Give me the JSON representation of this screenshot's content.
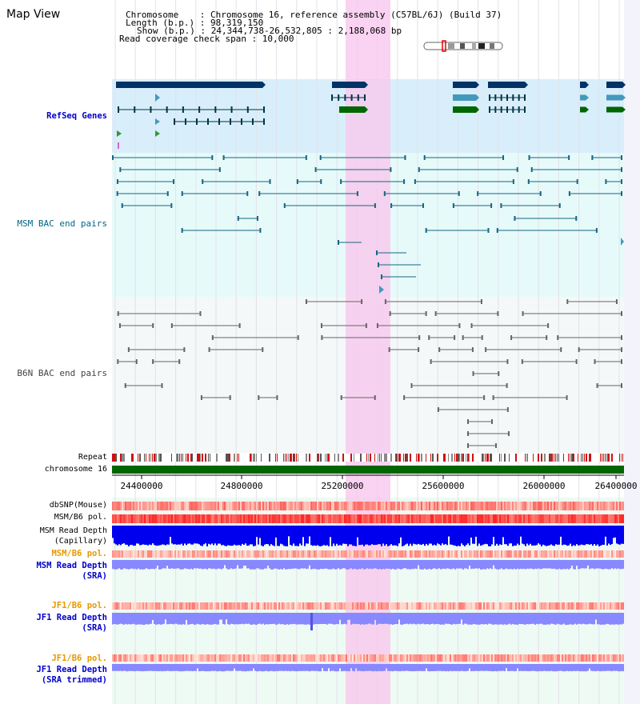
{
  "view_title": "Map View",
  "info": {
    "chromosome": "Chromosome    : Chromosome 16, reference assembly (C57BL/6J) (Build 37)",
    "length": "Length (b.p.) : 98,319,150",
    "show": "Show (b.p.) : 24,344,738-26,532,805 : 2,188,068 bp",
    "coverage": "Read coverage check span : 10,000"
  },
  "tracks": {
    "refseq": "RefSeq Genes",
    "msm_bac": "MSM BAC end pairs",
    "b6n_bac": "B6N BAC end pairs",
    "repeat": "Repeat",
    "chromosome": "chromosome 16",
    "dbsnp": "dbSNP(Mouse)",
    "msm_b6_pol_1": "MSM/B6 pol.",
    "msm_depth_cap_1": "MSM Read Depth",
    "msm_depth_cap_2": "(Capillary)",
    "msm_b6_pol_2": "MSM/B6 pol.",
    "msm_depth_sra_1": "MSM Read Depth",
    "msm_depth_sra_2": "(SRA)",
    "jf1_pol_1": "JF1/B6 pol.",
    "jf1_depth_sra_1": "JF1 Read Depth",
    "jf1_depth_sra_2": "(SRA)",
    "jf1_pol_2": "JF1/B6 pol.",
    "jf1_depth_trim_1": "JF1 Read Depth",
    "jf1_depth_trim_2": "(SRA trimmed)"
  },
  "axis_ticks": [
    "24400000",
    "24800000",
    "25200000",
    "25600000",
    "26000000",
    "26400000"
  ],
  "colors": {
    "refseq_bg": "#d8eefa",
    "msm_bg": "#e6fafa",
    "b6n_bg": "#f4f8f8",
    "highlight": "#f8c8ee",
    "gene_dark": "#003366",
    "gene_teal": "#4499bb",
    "gene_green": "#006600",
    "chromosome_bar": "#006600",
    "depth_blue": "#0000ee",
    "depth_light": "#8888ff"
  }
}
